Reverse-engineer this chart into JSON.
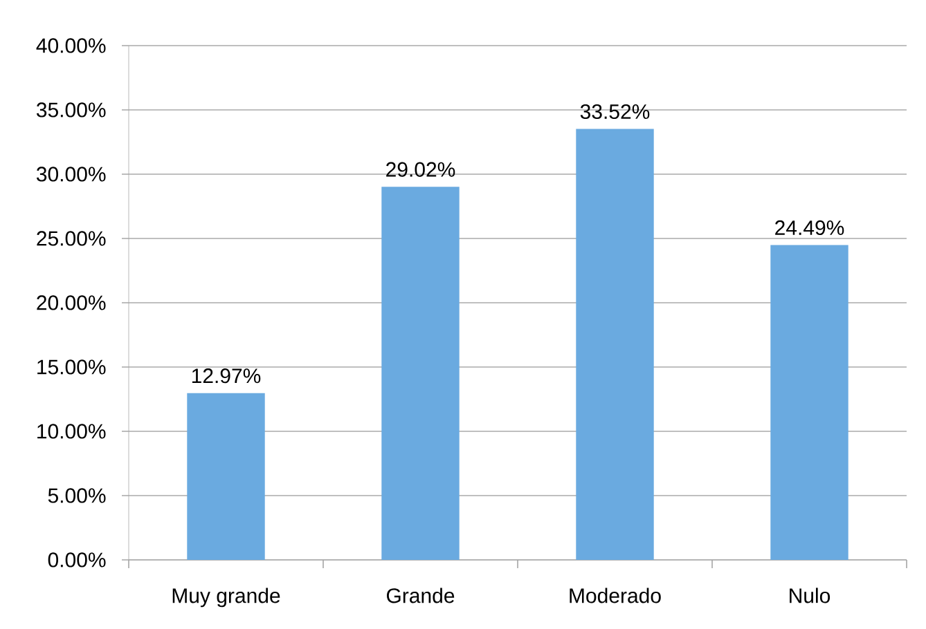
{
  "chart_data": {
    "type": "bar",
    "categories": [
      "Muy grande",
      "Grande",
      "Moderado",
      "Nulo"
    ],
    "values": [
      12.97,
      29.02,
      33.52,
      24.49
    ],
    "value_labels": [
      "12.97%",
      "29.02%",
      "33.52%",
      "24.49%"
    ],
    "color": "#6aaae0",
    "ylim": [
      0,
      40
    ],
    "yticks": [
      {
        "value": 0,
        "label": "0.00%"
      },
      {
        "value": 5,
        "label": "5.00%"
      },
      {
        "value": 10,
        "label": "10.00%"
      },
      {
        "value": 15,
        "label": "15.00%"
      },
      {
        "value": 20,
        "label": "20.00%"
      },
      {
        "value": 25,
        "label": "25.00%"
      },
      {
        "value": 30,
        "label": "30.00%"
      },
      {
        "value": 35,
        "label": "35.00%"
      },
      {
        "value": 40,
        "label": "40.00%"
      }
    ],
    "grid": "y"
  }
}
